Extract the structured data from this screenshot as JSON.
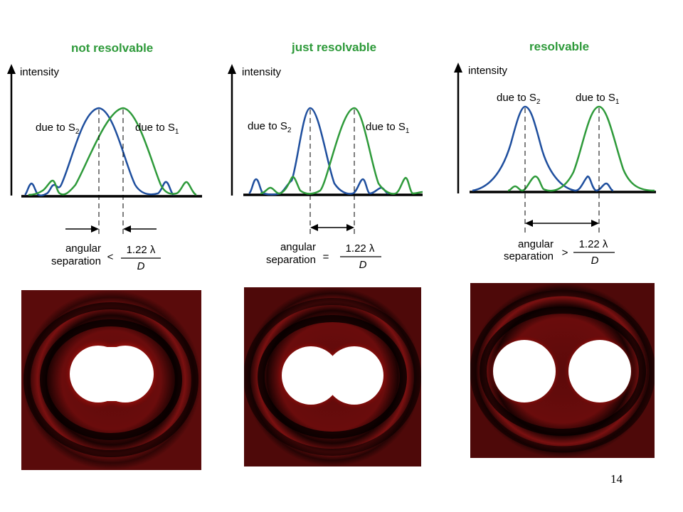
{
  "panels": [
    {
      "title": "not resolvable",
      "y_axis_label": "intensity",
      "label_left": "due to S",
      "label_left_sub": "2",
      "label_right": "due to S",
      "label_right_sub": "1",
      "condition_line1": "angular",
      "condition_line2": "separation",
      "operator": "<",
      "numerator": "1.22 λ",
      "denominator": "D"
    },
    {
      "title": "just resolvable",
      "y_axis_label": "intensity",
      "label_left": "due to S",
      "label_left_sub": "2",
      "label_right": "due to S",
      "label_right_sub": "1",
      "condition_line1": "angular",
      "condition_line2": "separation",
      "operator": "=",
      "numerator": "1.22 λ",
      "denominator": "D"
    },
    {
      "title": "resolvable",
      "y_axis_label": "intensity",
      "label_left": "due to S",
      "label_left_sub": "2",
      "label_right": "due to S",
      "label_right_sub": "1",
      "condition_line1": "angular",
      "condition_line2": "separation",
      "operator": ">",
      "numerator": "1.22 λ",
      "denominator": "D"
    }
  ],
  "colors": {
    "title_green": "#2e9a3a",
    "curve_blue": "#1f4f9e",
    "curve_green": "#2e9a3a",
    "pattern_red": "#8a0e0e"
  },
  "page_number": "14"
}
